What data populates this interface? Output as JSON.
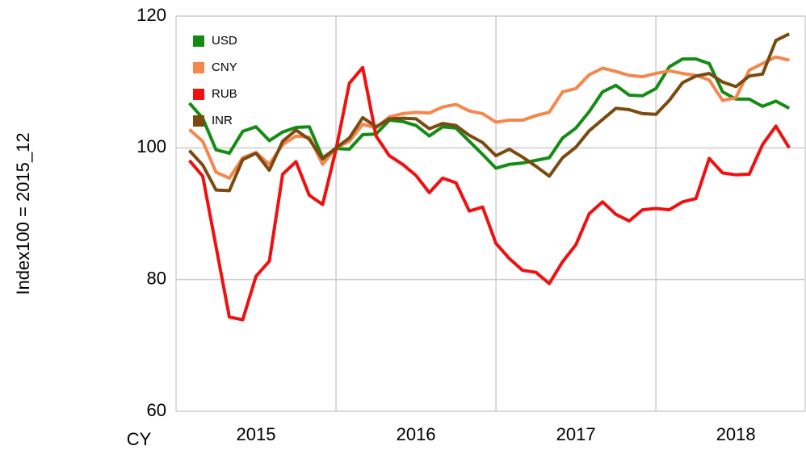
{
  "chart_data": {
    "type": "line",
    "y_label": "Index100 = 2015_12",
    "x_label": "CY",
    "x": [
      1,
      2,
      3,
      4,
      5,
      6,
      7,
      8,
      9,
      10,
      11,
      12,
      13,
      14,
      15,
      16,
      17,
      18,
      19,
      20,
      21,
      22,
      23,
      24,
      25,
      26,
      27,
      28,
      29,
      30,
      31,
      32,
      33,
      34,
      35,
      36,
      37,
      38,
      39,
      40,
      41,
      42,
      43,
      44,
      45,
      46
    ],
    "xlim": [
      0,
      47.2
    ],
    "xticks": [
      {
        "value": 6,
        "label": "2015"
      },
      {
        "value": 18,
        "label": "2016"
      },
      {
        "value": 30,
        "label": "2017"
      },
      {
        "value": 42,
        "label": "2018"
      }
    ],
    "xgrid": [
      12,
      24,
      36
    ],
    "ylim": [
      60,
      120
    ],
    "yticks": [
      60,
      80,
      100,
      120
    ],
    "grid": true,
    "legend": "upper left",
    "series": [
      {
        "name": "USD",
        "color": "#148c14",
        "values": [
          106.8,
          104.5,
          99.7,
          99.2,
          102.5,
          103.2,
          101.1,
          102.4,
          103.1,
          103.2,
          98.5,
          99.9,
          99.8,
          102.0,
          102.1,
          104.2,
          104.0,
          103.4,
          101.8,
          103.2,
          103.0,
          101.0,
          99.0,
          96.9,
          97.5,
          97.7,
          98.1,
          98.5,
          101.5,
          103.0,
          105.5,
          108.5,
          109.5,
          108.0,
          107.9,
          109.0,
          112.3,
          113.5,
          113.5,
          112.8,
          108.5,
          107.4,
          107.4,
          106.3,
          107.1,
          106.0
        ]
      },
      {
        "name": "CNY",
        "color": "#f5874c",
        "values": [
          102.8,
          101.0,
          96.3,
          95.4,
          98.5,
          99.3,
          97.5,
          100.5,
          101.8,
          101.6,
          97.5,
          100.0,
          101.0,
          103.6,
          103.0,
          104.7,
          105.2,
          105.4,
          105.3,
          106.2,
          106.6,
          105.6,
          105.2,
          103.9,
          104.2,
          104.2,
          104.9,
          105.4,
          108.5,
          109.0,
          111.1,
          112.1,
          111.6,
          111.0,
          110.8,
          111.3,
          111.7,
          111.3,
          111.0,
          110.3,
          107.2,
          107.6,
          111.8,
          112.8,
          113.8,
          113.3
        ]
      },
      {
        "name": "RUB",
        "color": "#f01010",
        "values": [
          98.1,
          95.7,
          85.0,
          74.3,
          73.9,
          80.5,
          82.8,
          96.0,
          97.9,
          92.8,
          91.4,
          99.8,
          109.8,
          112.2,
          101.8,
          98.8,
          97.5,
          95.8,
          93.2,
          95.4,
          94.7,
          90.4,
          91.0,
          85.5,
          83.2,
          81.4,
          81.1,
          79.4,
          82.7,
          85.3,
          90.0,
          91.8,
          89.9,
          88.9,
          90.6,
          90.8,
          90.6,
          91.8,
          92.3,
          98.4,
          96.2,
          95.9,
          96.0,
          100.5,
          103.3,
          100.0
        ]
      },
      {
        "name": "INR",
        "color": "#7a4a10",
        "values": [
          99.6,
          97.4,
          93.6,
          93.5,
          98.2,
          99.2,
          96.6,
          101.0,
          102.7,
          101.3,
          98.3,
          100.0,
          101.5,
          104.6,
          103.2,
          104.4,
          104.5,
          104.4,
          102.9,
          103.7,
          103.4,
          101.9,
          100.8,
          98.8,
          99.8,
          98.6,
          97.2,
          95.7,
          98.5,
          100.1,
          102.6,
          104.3,
          106.0,
          105.8,
          105.2,
          105.1,
          107.2,
          109.9,
          110.9,
          111.3,
          110.0,
          109.3,
          110.9,
          111.2,
          116.3,
          117.3
        ]
      }
    ]
  }
}
